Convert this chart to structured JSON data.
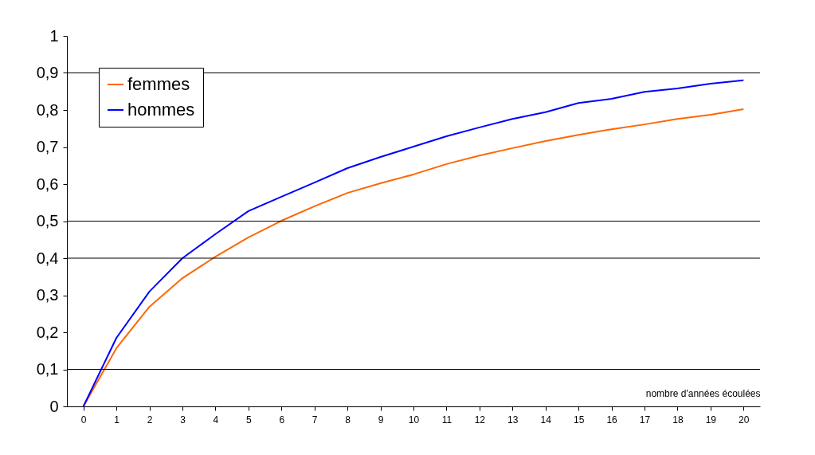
{
  "chart_data": {
    "type": "line",
    "xlabel": "nombre d'années écoulées",
    "x": [
      0,
      1,
      2,
      3,
      4,
      5,
      6,
      7,
      8,
      9,
      10,
      11,
      12,
      13,
      14,
      15,
      16,
      17,
      18,
      19,
      20
    ],
    "series": [
      {
        "name": "femmes",
        "color": "#ff6600",
        "values": [
          0,
          0.157,
          0.269,
          0.346,
          0.404,
          0.456,
          0.501,
          0.54,
          0.576,
          0.602,
          0.626,
          0.654,
          0.677,
          0.697,
          0.716,
          0.733,
          0.748,
          0.761,
          0.776,
          0.787,
          0.802
        ]
      },
      {
        "name": "hommes",
        "color": "#0000ff",
        "values": [
          0,
          0.185,
          0.31,
          0.4,
          0.465,
          0.527,
          0.566,
          0.604,
          0.643,
          0.673,
          0.701,
          0.729,
          0.753,
          0.776,
          0.794,
          0.819,
          0.83,
          0.849,
          0.858,
          0.871,
          0.88
        ]
      }
    ],
    "xlim": [
      -0.5,
      20.5
    ],
    "xticks": [
      0,
      1,
      2,
      3,
      4,
      5,
      6,
      7,
      8,
      9,
      10,
      11,
      12,
      13,
      14,
      15,
      16,
      17,
      18,
      19,
      20
    ],
    "ylim": [
      0,
      1
    ],
    "yticks": [
      0,
      {
        "value": 0.1,
        "label": "0,1"
      },
      {
        "value": 0.2,
        "label": "0,2"
      },
      {
        "value": 0.3,
        "label": "0,3"
      },
      {
        "value": 0.4,
        "label": "0,4"
      },
      {
        "value": 0.5,
        "label": "0,5"
      },
      {
        "value": 0.6,
        "label": "0,6"
      },
      {
        "value": 0.7,
        "label": "0,7"
      },
      {
        "value": 0.8,
        "label": "0,8"
      },
      {
        "value": 0.9,
        "label": "0,9"
      },
      1
    ],
    "ref_lines": [
      {
        "axis": "y",
        "value": 0.1,
        "label": null
      },
      {
        "axis": "y",
        "value": 0.4,
        "label": null
      },
      {
        "axis": "y",
        "value": 0.5,
        "label": null
      },
      {
        "axis": "y",
        "value": 0.9,
        "label": null
      }
    ],
    "legend": "top left",
    "marker": "none",
    "line_style": "solid",
    "grid": false
  }
}
